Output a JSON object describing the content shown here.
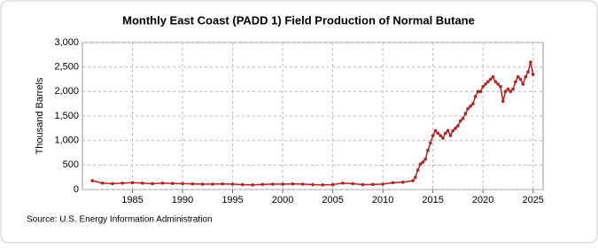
{
  "chart_data": {
    "type": "line",
    "title": "Monthly East Coast (PADD 1) Field Production of Normal Butane",
    "y_label": "Thousand Barrels",
    "source": "Source: U.S. Energy Information Administration",
    "x": [
      1981,
      1982,
      1983,
      1984,
      1985,
      1986,
      1987,
      1988,
      1989,
      1990,
      1991,
      1992,
      1993,
      1994,
      1995,
      1996,
      1997,
      1998,
      1999,
      2000,
      2001,
      2002,
      2003,
      2004,
      2005,
      2006,
      2007,
      2008,
      2009,
      2010,
      2011,
      2012,
      2013,
      2013.25,
      2013.5,
      2013.75,
      2014,
      2014.25,
      2014.5,
      2014.75,
      2015,
      2015.25,
      2015.5,
      2015.75,
      2016,
      2016.25,
      2016.5,
      2016.75,
      2017,
      2017.25,
      2017.5,
      2017.75,
      2018,
      2018.25,
      2018.5,
      2018.75,
      2019,
      2019.25,
      2019.5,
      2019.75,
      2020,
      2020.25,
      2020.5,
      2020.75,
      2021,
      2021.25,
      2021.5,
      2021.75,
      2022,
      2022.25,
      2022.5,
      2022.75,
      2023,
      2023.25,
      2023.5,
      2023.75,
      2024,
      2024.25,
      2024.5,
      2024.75,
      2025
    ],
    "series": [
      {
        "name": "Normal Butane",
        "color": "#b22222",
        "values": [
          180,
          130,
          120,
          130,
          140,
          130,
          120,
          130,
          125,
          120,
          115,
          110,
          110,
          115,
          110,
          100,
          95,
          105,
          110,
          110,
          115,
          110,
          100,
          95,
          100,
          130,
          120,
          100,
          105,
          110,
          140,
          150,
          180,
          250,
          400,
          520,
          560,
          620,
          800,
          950,
          1100,
          1200,
          1150,
          1100,
          1050,
          1150,
          1200,
          1100,
          1200,
          1250,
          1300,
          1400,
          1450,
          1550,
          1650,
          1700,
          1750,
          1900,
          2000,
          2000,
          2100,
          2150,
          2200,
          2250,
          2300,
          2200,
          2150,
          2100,
          1800,
          2000,
          2050,
          2000,
          2050,
          2200,
          2300,
          2250,
          2150,
          2300,
          2400,
          2600,
          2350
        ]
      }
    ],
    "xlim": [
      1980,
      2026
    ],
    "xticks": [
      1985,
      1990,
      1995,
      2000,
      2005,
      2010,
      2015,
      2020,
      2025
    ],
    "ylim": [
      0,
      3000
    ],
    "yticks": [
      0,
      500,
      {
        "value": 1000,
        "label": "1,000"
      },
      {
        "value": 1500,
        "label": "1,500"
      },
      {
        "value": 2000,
        "label": "2,000"
      },
      {
        "value": 2500,
        "label": "2,500"
      },
      {
        "value": 3000,
        "label": "3,000"
      }
    ],
    "grid": true
  }
}
